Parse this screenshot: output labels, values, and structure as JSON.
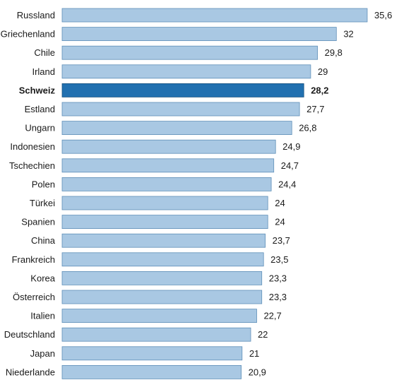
{
  "chart_data": {
    "type": "bar",
    "orientation": "horizontal",
    "title": "",
    "xlabel": "",
    "ylabel": "",
    "categories": [
      "Russland",
      "Griechenland",
      "Chile",
      "Irland",
      "Schweiz",
      "Estland",
      "Ungarn",
      "Indonesien",
      "Tschechien",
      "Polen",
      "Türkei",
      "Spanien",
      "China",
      "Frankreich",
      "Korea",
      "Österreich",
      "Italien",
      "Deutschland",
      "Japan",
      "Niederlande"
    ],
    "values": [
      35.6,
      32,
      29.8,
      29,
      28.2,
      27.7,
      26.8,
      24.9,
      24.7,
      24.4,
      24,
      24,
      23.7,
      23.5,
      23.3,
      23.3,
      22.7,
      22,
      21,
      20.9
    ],
    "value_labels": [
      "35,6",
      "32",
      "29,8",
      "29",
      "28,2",
      "27,7",
      "26,8",
      "24,9",
      "24,7",
      "24,4",
      "24",
      "24",
      "23,7",
      "23,5",
      "23,3",
      "23,3",
      "22,7",
      "22",
      "21",
      "20,9"
    ],
    "highlight_category": "Schweiz",
    "xlim": [
      0,
      35.6
    ],
    "grid": false,
    "legend": "none",
    "colors": {
      "bar": "#a9c8e3",
      "bar_edge": "#5f8fb8",
      "highlight": "#2170b0",
      "highlight_edge": "#16507f"
    }
  }
}
